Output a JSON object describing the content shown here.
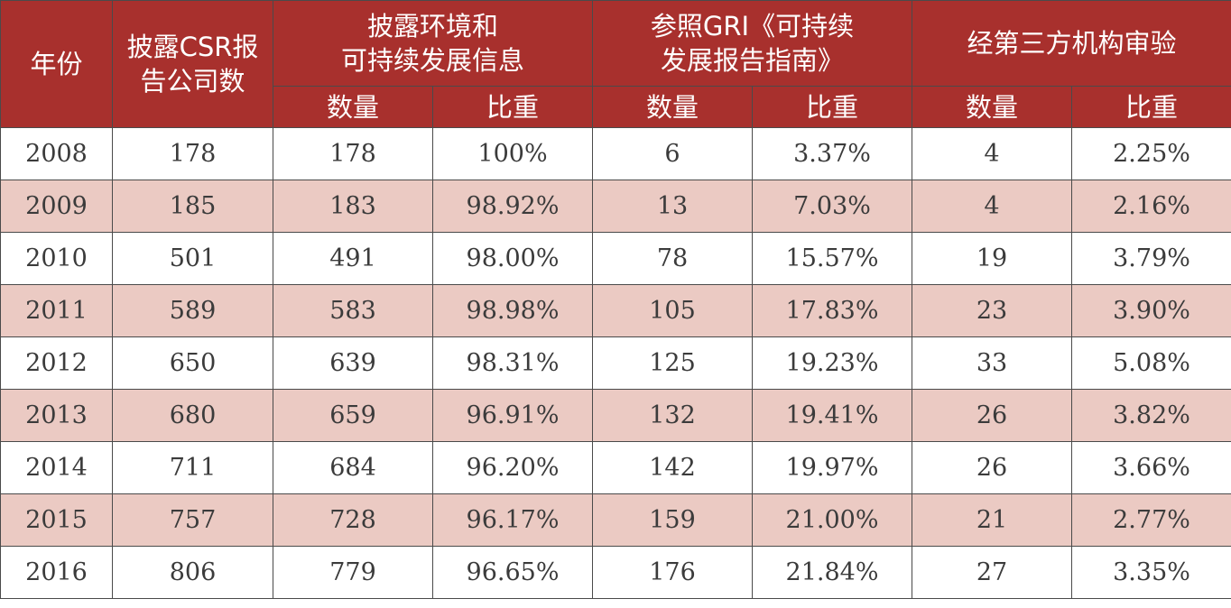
{
  "header": {
    "year": "年份",
    "companies_line1": "披露CSR报",
    "companies_line2": "告公司数",
    "env_line1": "披露环境和",
    "env_line2": "可持续发展信息",
    "gri_line1": "参照GRI《可持续",
    "gri_line2": "发展报告指南》",
    "audit": "经第三方机构审验",
    "count": "数量",
    "ratio": "比重"
  },
  "rows": [
    {
      "year": "2008",
      "companies": "178",
      "env_count": "178",
      "env_ratio": "100%",
      "gri_count": "6",
      "gri_ratio": "3.37%",
      "audit_count": "4",
      "audit_ratio": "2.25%"
    },
    {
      "year": "2009",
      "companies": "185",
      "env_count": "183",
      "env_ratio": "98.92%",
      "gri_count": "13",
      "gri_ratio": "7.03%",
      "audit_count": "4",
      "audit_ratio": "2.16%"
    },
    {
      "year": "2010",
      "companies": "501",
      "env_count": "491",
      "env_ratio": "98.00%",
      "gri_count": "78",
      "gri_ratio": "15.57%",
      "audit_count": "19",
      "audit_ratio": "3.79%"
    },
    {
      "year": "2011",
      "companies": "589",
      "env_count": "583",
      "env_ratio": "98.98%",
      "gri_count": "105",
      "gri_ratio": "17.83%",
      "audit_count": "23",
      "audit_ratio": "3.90%"
    },
    {
      "year": "2012",
      "companies": "650",
      "env_count": "639",
      "env_ratio": "98.31%",
      "gri_count": "125",
      "gri_ratio": "19.23%",
      "audit_count": "33",
      "audit_ratio": "5.08%"
    },
    {
      "year": "2013",
      "companies": "680",
      "env_count": "659",
      "env_ratio": "96.91%",
      "gri_count": "132",
      "gri_ratio": "19.41%",
      "audit_count": "26",
      "audit_ratio": "3.82%"
    },
    {
      "year": "2014",
      "companies": "711",
      "env_count": "684",
      "env_ratio": "96.20%",
      "gri_count": "142",
      "gri_ratio": "19.97%",
      "audit_count": "26",
      "audit_ratio": "3.66%"
    },
    {
      "year": "2015",
      "companies": "757",
      "env_count": "728",
      "env_ratio": "96.17%",
      "gri_count": "159",
      "gri_ratio": "21.00%",
      "audit_count": "21",
      "audit_ratio": "2.77%"
    },
    {
      "year": "2016",
      "companies": "806",
      "env_count": "779",
      "env_ratio": "96.65%",
      "gri_count": "176",
      "gri_ratio": "21.84%",
      "audit_count": "27",
      "audit_ratio": "3.35%"
    }
  ],
  "colors": {
    "header_bg": "#a8302d",
    "header_text": "#ffffff",
    "alt_row_bg": "#ebcac3",
    "row_bg": "#ffffff",
    "border": "#4a4a4a"
  }
}
